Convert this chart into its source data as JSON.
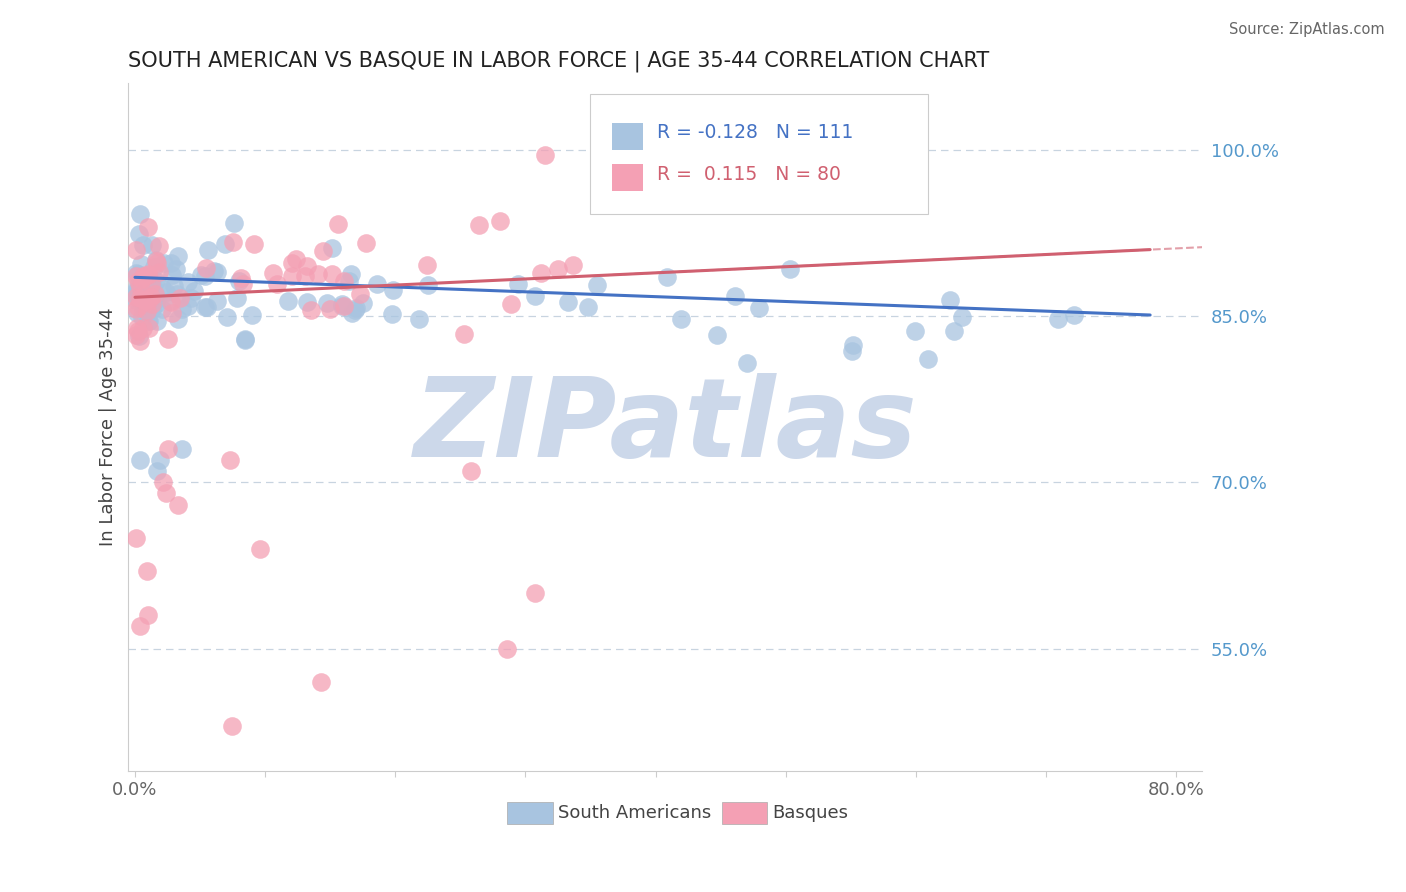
{
  "title": "SOUTH AMERICAN VS BASQUE IN LABOR FORCE | AGE 35-44 CORRELATION CHART",
  "source": "Source: ZipAtlas.com",
  "ylabel": "In Labor Force | Age 35-44",
  "xlim": [
    -0.005,
    0.82
  ],
  "ylim": [
    0.44,
    1.06
  ],
  "ytick_positions": [
    0.55,
    0.7,
    0.85,
    1.0
  ],
  "ytick_labels": [
    "55.0%",
    "70.0%",
    "85.0%",
    "100.0%"
  ],
  "legend_r_sa": "-0.128",
  "legend_n_sa": "111",
  "legend_r_ba": " 0.115",
  "legend_n_ba": "80",
  "sa_color": "#a8c4e0",
  "ba_color": "#f4a0b4",
  "sa_line_color": "#4472c4",
  "ba_line_color": "#d06070",
  "watermark": "ZIPatlas",
  "watermark_color": "#ccd8ea"
}
